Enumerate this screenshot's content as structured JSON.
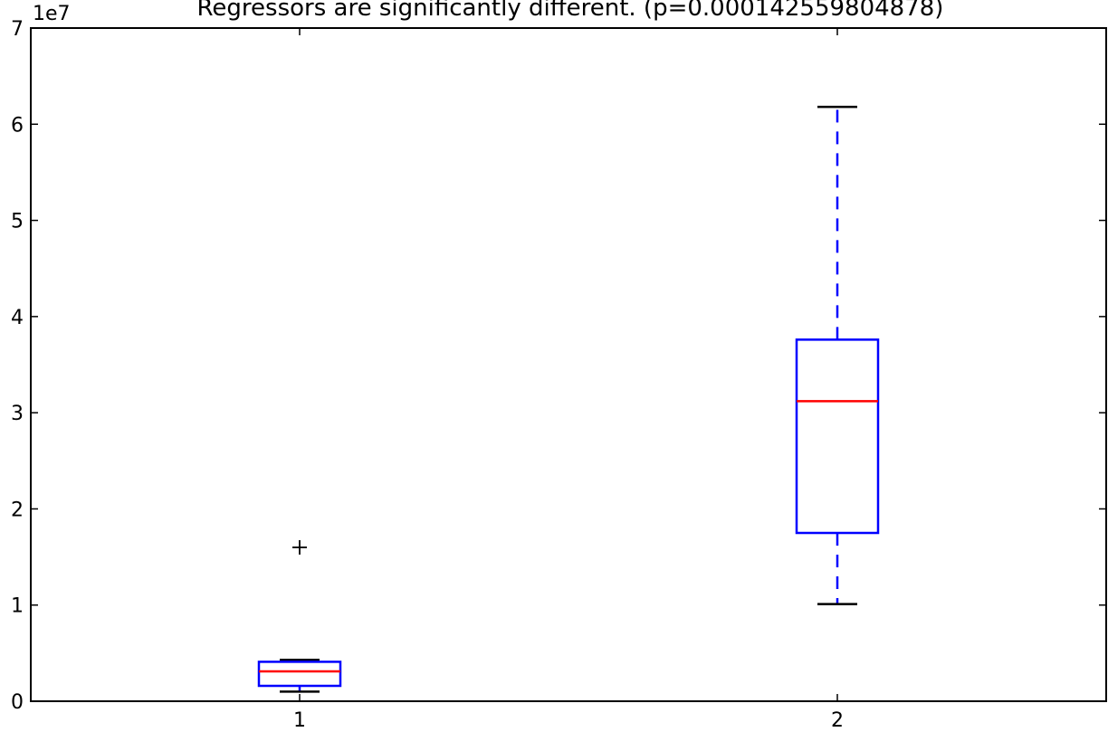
{
  "chart_data": {
    "type": "box",
    "title": "Regressors are significantly different. (p=0.000142559804878)",
    "xlabel": "",
    "ylabel": "",
    "y_offset_label": "1e7",
    "ylim": [
      0,
      70000000
    ],
    "xlim": [
      0.5,
      2.5
    ],
    "grid": false,
    "x_tick_labels": [
      "1",
      "2"
    ],
    "y_tick_labels": [
      "0",
      "1",
      "2",
      "3",
      "4",
      "5",
      "6",
      "7"
    ],
    "y_ticks": [
      0,
      10000000,
      20000000,
      30000000,
      40000000,
      50000000,
      60000000,
      70000000
    ],
    "boxes": [
      {
        "position": 1,
        "whisker_low": 1000000,
        "q1": 1600000,
        "median": 3100000,
        "q3": 4100000,
        "whisker_high": 4300000,
        "outliers": [
          16000000
        ]
      },
      {
        "position": 2,
        "whisker_low": 10100000,
        "q1": 17500000,
        "median": 31200000,
        "q3": 37600000,
        "whisker_high": 61800000,
        "outliers": []
      }
    ],
    "colors": {
      "box": "#0000ff",
      "median": "#ff0000",
      "cap": "#000000",
      "outlier": "#000000",
      "axes": "#000000"
    }
  }
}
